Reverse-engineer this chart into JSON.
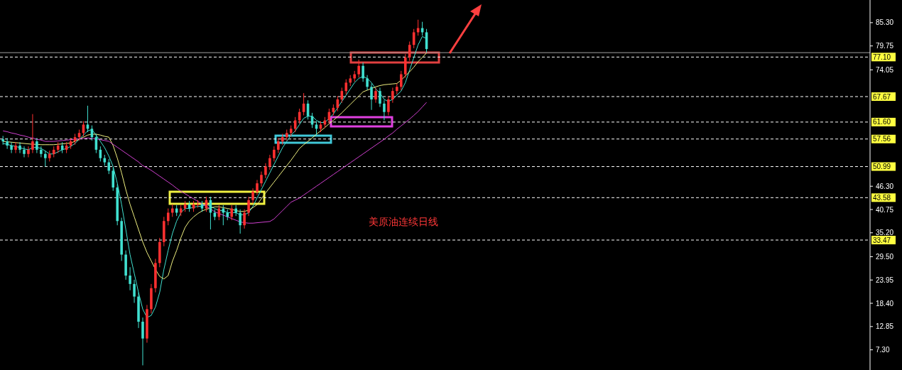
{
  "chart_data": {
    "type": "candlestick",
    "categories": [
      null,
      null,
      null,
      null,
      null,
      null,
      null,
      null,
      null,
      null,
      null,
      null,
      null,
      null,
      null,
      null,
      null,
      null,
      null,
      null,
      null,
      null,
      null,
      null,
      null,
      null,
      null,
      null,
      null,
      null,
      null,
      null,
      null,
      null,
      null,
      null,
      null,
      null,
      null,
      null,
      null,
      null,
      null,
      null,
      null,
      null,
      null,
      null,
      null,
      null,
      null,
      null,
      null,
      null,
      null,
      null,
      null,
      null,
      null,
      null,
      null,
      null,
      null,
      null,
      null,
      null,
      null,
      null,
      null,
      null,
      null,
      null,
      null,
      null,
      null,
      null,
      null,
      null,
      null,
      null,
      null,
      null,
      null,
      null,
      null,
      null,
      null,
      null,
      null,
      null,
      null,
      null,
      null,
      null,
      null,
      null,
      null,
      null,
      null,
      null,
      null,
      null,
      null,
      null,
      null,
      null,
      null,
      null,
      null,
      null,
      null,
      null,
      null,
      null,
      null,
      null,
      null,
      null,
      null,
      null,
      null,
      null,
      null,
      null,
      null,
      null,
      null,
      null,
      null,
      null,
      null,
      null,
      null,
      null,
      null,
      null,
      null,
      null,
      null,
      null,
      null,
      null,
      null,
      null,
      null,
      null,
      null,
      null,
      null,
      null,
      null,
      null,
      null,
      null,
      null,
      null,
      null,
      null,
      null,
      null,
      null,
      null,
      null,
      null,
      null,
      null,
      null,
      null,
      null,
      null,
      null,
      null,
      null,
      null,
      null,
      null,
      null,
      null,
      null,
      null,
      null,
      null,
      null,
      null,
      null,
      null,
      null,
      null,
      null,
      null,
      null,
      null,
      null,
      null,
      null,
      null,
      null,
      null,
      null,
      null,
      null,
      null,
      null,
      null,
      null
    ],
    "ohlc": [
      [
        57.5,
        58.3,
        56.2,
        57
      ],
      [
        57,
        57.8,
        55.2,
        56
      ],
      [
        56,
        56.8,
        54.2,
        55
      ],
      [
        55,
        56.8,
        54.2,
        56
      ],
      [
        56,
        56.8,
        54.2,
        55
      ],
      [
        55,
        55.8,
        53.2,
        54
      ],
      [
        54,
        55.8,
        53.2,
        55
      ],
      [
        55,
        63.5,
        54.2,
        57
      ],
      [
        57,
        57.8,
        54.2,
        55
      ],
      [
        55,
        55.8,
        53.2,
        54
      ],
      [
        54,
        54.8,
        51,
        53
      ],
      [
        53,
        54.8,
        52.2,
        54
      ],
      [
        54,
        55.8,
        53.2,
        55
      ],
      [
        55,
        56.8,
        54.2,
        56
      ],
      [
        56,
        56.8,
        54.2,
        55
      ],
      [
        55,
        56.8,
        54.2,
        56
      ],
      [
        56,
        57.8,
        55.2,
        57
      ],
      [
        57,
        58.8,
        56.2,
        58
      ],
      [
        58,
        59.8,
        57.2,
        59
      ],
      [
        59,
        61.8,
        58.2,
        61
      ],
      [
        61,
        65.5,
        59.2,
        60
      ],
      [
        60,
        60.8,
        57.2,
        58
      ],
      [
        58,
        58.8,
        54.2,
        55
      ],
      [
        55,
        55.8,
        52.2,
        53
      ],
      [
        53,
        53.8,
        51.2,
        52
      ],
      [
        52,
        52.8,
        49.2,
        50
      ],
      [
        50,
        50.8,
        45.2,
        46
      ],
      [
        46,
        46.8,
        37,
        38
      ],
      [
        38,
        38.8,
        28.5,
        30
      ],
      [
        30,
        31,
        24,
        25
      ],
      [
        25,
        27,
        21.5,
        23
      ],
      [
        23,
        24,
        18.5,
        20
      ],
      [
        20,
        21,
        12.5,
        14
      ],
      [
        14,
        15,
        3.6,
        10
      ],
      [
        10,
        18,
        9,
        17
      ],
      [
        17,
        23,
        16,
        22
      ],
      [
        22,
        29,
        21,
        28
      ],
      [
        28,
        34,
        27,
        33
      ],
      [
        33,
        39,
        32,
        38
      ],
      [
        38,
        41,
        37,
        40
      ],
      [
        40,
        42,
        39,
        41
      ],
      [
        41,
        41.8,
        39.2,
        40
      ],
      [
        40,
        41.8,
        39.2,
        41
      ],
      [
        41,
        42.8,
        40.2,
        42
      ],
      [
        42,
        42.8,
        40.2,
        41
      ],
      [
        41,
        42.8,
        40.2,
        42
      ],
      [
        42,
        43,
        41.2,
        42
      ],
      [
        42,
        42.8,
        40.2,
        41
      ],
      [
        41,
        43.8,
        40.2,
        43
      ],
      [
        43,
        43.8,
        36,
        40
      ],
      [
        40,
        40.8,
        38.2,
        39
      ],
      [
        39,
        41.8,
        38.2,
        41
      ],
      [
        41,
        41.8,
        37,
        40
      ],
      [
        40,
        40.8,
        38.2,
        39
      ],
      [
        39,
        41.8,
        38.2,
        41
      ],
      [
        41,
        41.8,
        39.2,
        40
      ],
      [
        40,
        40.8,
        35,
        37
      ],
      [
        37,
        40.8,
        36.2,
        40
      ],
      [
        40,
        43.8,
        39.2,
        43
      ],
      [
        43,
        45.8,
        42.2,
        45
      ],
      [
        45,
        47.8,
        44.2,
        47
      ],
      [
        47,
        49.8,
        46.2,
        49
      ],
      [
        49,
        51.8,
        48.2,
        51
      ],
      [
        51,
        53.8,
        50.2,
        53
      ],
      [
        53,
        55.8,
        52.2,
        55
      ],
      [
        55,
        57.8,
        54.2,
        57
      ],
      [
        57,
        58.8,
        56.2,
        58
      ],
      [
        58,
        59.8,
        57.2,
        59
      ],
      [
        59,
        60.8,
        58.2,
        60
      ],
      [
        60,
        62.8,
        59.2,
        62
      ],
      [
        62,
        64.8,
        61.2,
        64
      ],
      [
        64,
        68.5,
        63.2,
        66
      ],
      [
        66,
        66.8,
        62.2,
        63
      ],
      [
        63,
        63.8,
        60.2,
        61
      ],
      [
        61,
        61.8,
        58.5,
        60
      ],
      [
        60,
        61.8,
        59.2,
        61
      ],
      [
        61,
        62.8,
        60.2,
        62
      ],
      [
        62,
        64.8,
        61.2,
        64
      ],
      [
        64,
        65.8,
        63.2,
        65
      ],
      [
        65,
        67.8,
        64.2,
        67
      ],
      [
        67,
        69.8,
        66.2,
        69
      ],
      [
        69,
        71.8,
        68.2,
        71
      ],
      [
        71,
        72.8,
        70.2,
        72
      ],
      [
        72,
        73.8,
        71.2,
        73
      ],
      [
        73,
        76.5,
        72.2,
        75
      ],
      [
        75,
        75.8,
        71.2,
        72
      ],
      [
        72,
        72.8,
        69.2,
        70
      ],
      [
        70,
        70.8,
        64.5,
        67
      ],
      [
        67,
        69.8,
        66.2,
        69
      ],
      [
        69,
        69.8,
        65.2,
        66
      ],
      [
        66,
        66.8,
        62,
        64
      ],
      [
        64,
        67.8,
        63.2,
        67
      ],
      [
        67,
        69.8,
        66.2,
        69
      ],
      [
        69,
        70.8,
        68.2,
        70
      ],
      [
        70,
        73.8,
        69.2,
        73
      ],
      [
        73,
        77.8,
        72.2,
        77
      ],
      [
        77,
        80.8,
        76.2,
        80
      ],
      [
        80,
        83.8,
        79.2,
        83
      ],
      [
        83,
        86,
        82.2,
        84
      ],
      [
        84,
        85.5,
        82.2,
        83
      ],
      [
        83,
        83.8,
        78.2,
        79
      ],
      null,
      null,
      null,
      null,
      null,
      null,
      null,
      null,
      null,
      null,
      null,
      null,
      null,
      null,
      null,
      null,
      null,
      null,
      null,
      null,
      null,
      null,
      null,
      null,
      null,
      null,
      null,
      null,
      null,
      null,
      null,
      null,
      null,
      null,
      null,
      null,
      null,
      null,
      null,
      null,
      null,
      null,
      null,
      null,
      null,
      null,
      null,
      null,
      null,
      null,
      null,
      null,
      null,
      null,
      null,
      null,
      null,
      null,
      null,
      null,
      null,
      null,
      null,
      null,
      null,
      null,
      null,
      null,
      null,
      null,
      null,
      null,
      null,
      null,
      null,
      null,
      null,
      null,
      null,
      null,
      null,
      null,
      null,
      null,
      null,
      null,
      null,
      null,
      null,
      null,
      null,
      null,
      null,
      null,
      null,
      null,
      null,
      null,
      null,
      null,
      null,
      null,
      null,
      null
    ],
    "series": [
      {
        "type": "line",
        "color": "#40e0d0",
        "values": [
          56.5,
          56.3,
          56,
          55.8,
          55.5,
          55.2,
          55,
          55.5,
          55.6,
          55.3,
          54.7,
          54,
          54,
          54.5,
          55,
          55.3,
          55.8,
          56.5,
          57.5,
          58.5,
          59.5,
          59.8,
          58.5,
          57,
          55.5,
          53.5,
          51,
          47,
          42,
          36,
          30,
          25.5,
          21,
          17,
          15,
          15.5,
          17.5,
          21,
          26.5,
          31,
          35,
          38,
          40,
          41,
          41,
          41.3,
          41.5,
          41.5,
          42,
          41.5,
          41,
          40.5,
          40.5,
          40,
          40,
          40,
          39.5,
          39.5,
          40,
          41.5,
          43.5,
          45.5,
          47.5,
          49.5,
          51.5,
          53.5,
          55.5,
          57,
          58.5,
          59.5,
          61,
          62.5,
          63,
          63,
          62,
          61.5,
          61.5,
          62.5,
          63.5,
          65,
          66.5,
          68,
          69.5,
          71,
          72,
          72.5,
          72,
          71,
          69.5,
          68.5,
          67,
          66.5,
          67,
          68,
          69,
          71,
          74,
          77,
          80,
          82,
          81.5,
          null,
          null,
          null,
          null,
          null,
          null,
          null,
          null,
          null,
          null,
          null,
          null,
          null,
          null,
          null,
          null,
          null,
          null,
          null,
          null,
          null,
          null,
          null,
          null,
          null,
          null,
          null,
          null,
          null,
          null,
          null,
          null,
          null,
          null,
          null,
          null,
          null,
          null,
          null,
          null,
          null,
          null,
          null,
          null,
          null,
          null,
          null,
          null,
          null,
          null,
          null,
          null,
          null,
          null,
          null,
          null,
          null,
          null,
          null,
          null,
          null,
          null,
          null,
          null,
          null,
          null,
          null,
          null,
          null,
          null,
          null,
          null,
          null,
          null,
          null,
          null,
          null,
          null,
          null,
          null,
          null,
          null,
          null,
          null,
          null,
          null,
          null,
          null,
          null,
          null,
          null,
          null,
          null,
          null,
          null,
          null,
          null,
          null,
          null,
          null,
          null,
          null,
          null,
          null
        ]
      },
      {
        "type": "line",
        "color": "#f0f080",
        "values": [
          57,
          56.9,
          56.8,
          56.7,
          56.6,
          56.5,
          56.4,
          56.3,
          56.3,
          56.2,
          56.2,
          56.2,
          56.2,
          56.3,
          56.4,
          56.5,
          56.6,
          57,
          57.5,
          58,
          58.5,
          58.7,
          58.7,
          58.5,
          58.2,
          58,
          56,
          53,
          49.5,
          45.5,
          42,
          39,
          36,
          33,
          30.5,
          28.5,
          26.5,
          24.8,
          24.2,
          25,
          28.4,
          31,
          34,
          36.5,
          38,
          39,
          39.8,
          40.4,
          40.8,
          41.1,
          41.4,
          41.4,
          41.2,
          41,
          40.8,
          40.5,
          40.3,
          40.3,
          40.6,
          41.2,
          41.9,
          43.3,
          44.7,
          46,
          47.3,
          48.6,
          49.9,
          51.2,
          52.5,
          53.9,
          55.3,
          56.2,
          57,
          57.8,
          58.7,
          59.5,
          60.3,
          61.2,
          62,
          62.9,
          63.8,
          64.8,
          65.8,
          66.8,
          67.8,
          68.8,
          69.2,
          69.6,
          70,
          70.3,
          70.5,
          70.6,
          70.7,
          70.8,
          71.6,
          72.6,
          73.6,
          74.7,
          76,
          77,
          78.1,
          null,
          null,
          null,
          null,
          null,
          null,
          null,
          null,
          null,
          null,
          null,
          null,
          null,
          null,
          null,
          null,
          null,
          null,
          null,
          null,
          null,
          null,
          null,
          null,
          null,
          null,
          null,
          null,
          null,
          null,
          null,
          null,
          null,
          null,
          null,
          null,
          null,
          null,
          null,
          null,
          null,
          null,
          null,
          null,
          null,
          null,
          null,
          null,
          null,
          null,
          null,
          null,
          null,
          null,
          null,
          null,
          null,
          null,
          null,
          null,
          null,
          null,
          null,
          null,
          null,
          null,
          null,
          null,
          null,
          null,
          null,
          null,
          null,
          null,
          null,
          null,
          null,
          null,
          null,
          null,
          null,
          null,
          null,
          null,
          null,
          null,
          null,
          null,
          null,
          null,
          null,
          null,
          null,
          null,
          null,
          null,
          null,
          null,
          null,
          null,
          null,
          null,
          null,
          null
        ]
      },
      {
        "type": "line",
        "color": "#d040d0",
        "values": [
          59.5,
          59.3,
          59,
          58.8,
          58.5,
          58.3,
          58,
          57.8,
          57.5,
          57.3,
          57,
          57,
          57,
          57.1,
          57.2,
          57.3,
          57.4,
          57.5,
          57.6,
          57.7,
          57.8,
          57.7,
          57.6,
          57.4,
          57.2,
          57,
          56.3,
          55.6,
          54.9,
          54.2,
          53.5,
          52.8,
          52.1,
          51.2,
          50.7,
          50.1,
          49.4,
          48.7,
          48,
          47.3,
          46.6,
          45.8,
          45.1,
          44.5,
          43.9,
          43.3,
          42.7,
          42.1,
          41.5,
          40.9,
          40.2,
          39.8,
          39.4,
          39,
          38.6,
          38.2,
          37.8,
          37.6,
          37.5,
          37.5,
          37.6,
          37.7,
          37.8,
          37.9,
          38.5,
          39.5,
          40.5,
          41.5,
          42.5,
          43,
          43.5,
          44.2,
          44.9,
          45.6,
          46.3,
          47,
          47.7,
          48.4,
          49.1,
          49.8,
          50.5,
          51.2,
          51.9,
          52.6,
          53.3,
          54,
          54.7,
          55.4,
          56.1,
          56.8,
          57.5,
          58.3,
          59,
          59.9,
          60.7,
          61.5,
          62.3,
          63.2,
          64.1,
          65.2,
          66.3,
          null,
          null,
          null,
          null,
          null,
          null,
          null,
          null,
          null,
          null,
          null,
          null,
          null,
          null,
          null,
          null,
          null,
          null,
          null,
          null,
          null,
          null,
          null,
          null,
          null,
          null,
          null,
          null,
          null,
          null,
          null,
          null,
          null,
          null,
          null,
          null,
          null,
          null,
          null,
          null,
          null,
          null,
          null,
          null,
          null,
          null,
          null,
          null,
          null,
          null,
          null,
          null,
          null,
          null,
          null,
          null,
          null,
          null,
          null,
          null,
          null,
          null,
          null,
          null,
          null,
          null,
          null,
          null,
          null,
          null,
          null,
          null,
          null,
          null,
          null,
          null,
          null,
          null,
          null,
          null,
          null,
          null,
          null,
          null,
          null,
          null,
          null,
          null,
          null,
          null,
          null,
          null,
          null,
          null,
          null,
          null,
          null,
          null,
          null,
          null,
          null,
          null,
          null,
          null
        ]
      }
    ],
    "ylim": [
      3.0,
      90.7
    ],
    "yticks": [
      {
        "value": 85.3,
        "label": "85.30"
      },
      79.75,
      74.05,
      {
        "value": 46.3,
        "label": "46.30"
      },
      40.75,
      {
        "value": 35.2,
        "label": "35.20"
      },
      {
        "value": 29.5,
        "label": "29.50"
      },
      23.95,
      {
        "value": 18.4,
        "label": "18.40"
      },
      12.85,
      {
        "value": 7.3,
        "label": "7.30"
      }
    ],
    "ref_lines": [
      {
        "axis": "y",
        "value": 78.15,
        "label": null,
        "color": "#a0a0a0",
        "line_style": "solid"
      },
      {
        "axis": "y",
        "value": 77.1,
        "label": "77.10",
        "color": "#ffffff",
        "line_style": "dashed"
      },
      {
        "axis": "y",
        "value": 67.67,
        "label": "67.67",
        "color": "#ffffff",
        "line_style": "dashed"
      },
      {
        "axis": "y",
        "value": 61.6,
        "label": "61.60",
        "color": "#ffffff",
        "line_style": "dashed"
      },
      {
        "axis": "y",
        "value": 57.56,
        "label": "57.56",
        "color": "#ffffff",
        "line_style": "dashed"
      },
      {
        "axis": "y",
        "value": 50.99,
        "label": "50.99",
        "color": "#ffffff",
        "line_style": "dashed"
      },
      {
        "axis": "y",
        "value": 43.58,
        "label": "43.58",
        "color": "#ffffff",
        "line_style": "dashed"
      },
      {
        "axis": "y",
        "value": 33.47,
        "label": "33.47",
        "color": "#ffffff",
        "line_style": "dashed"
      }
    ],
    "annotations": [
      "美原油连续日线"
    ],
    "tick_labels": "y",
    "grid": false
  }
}
